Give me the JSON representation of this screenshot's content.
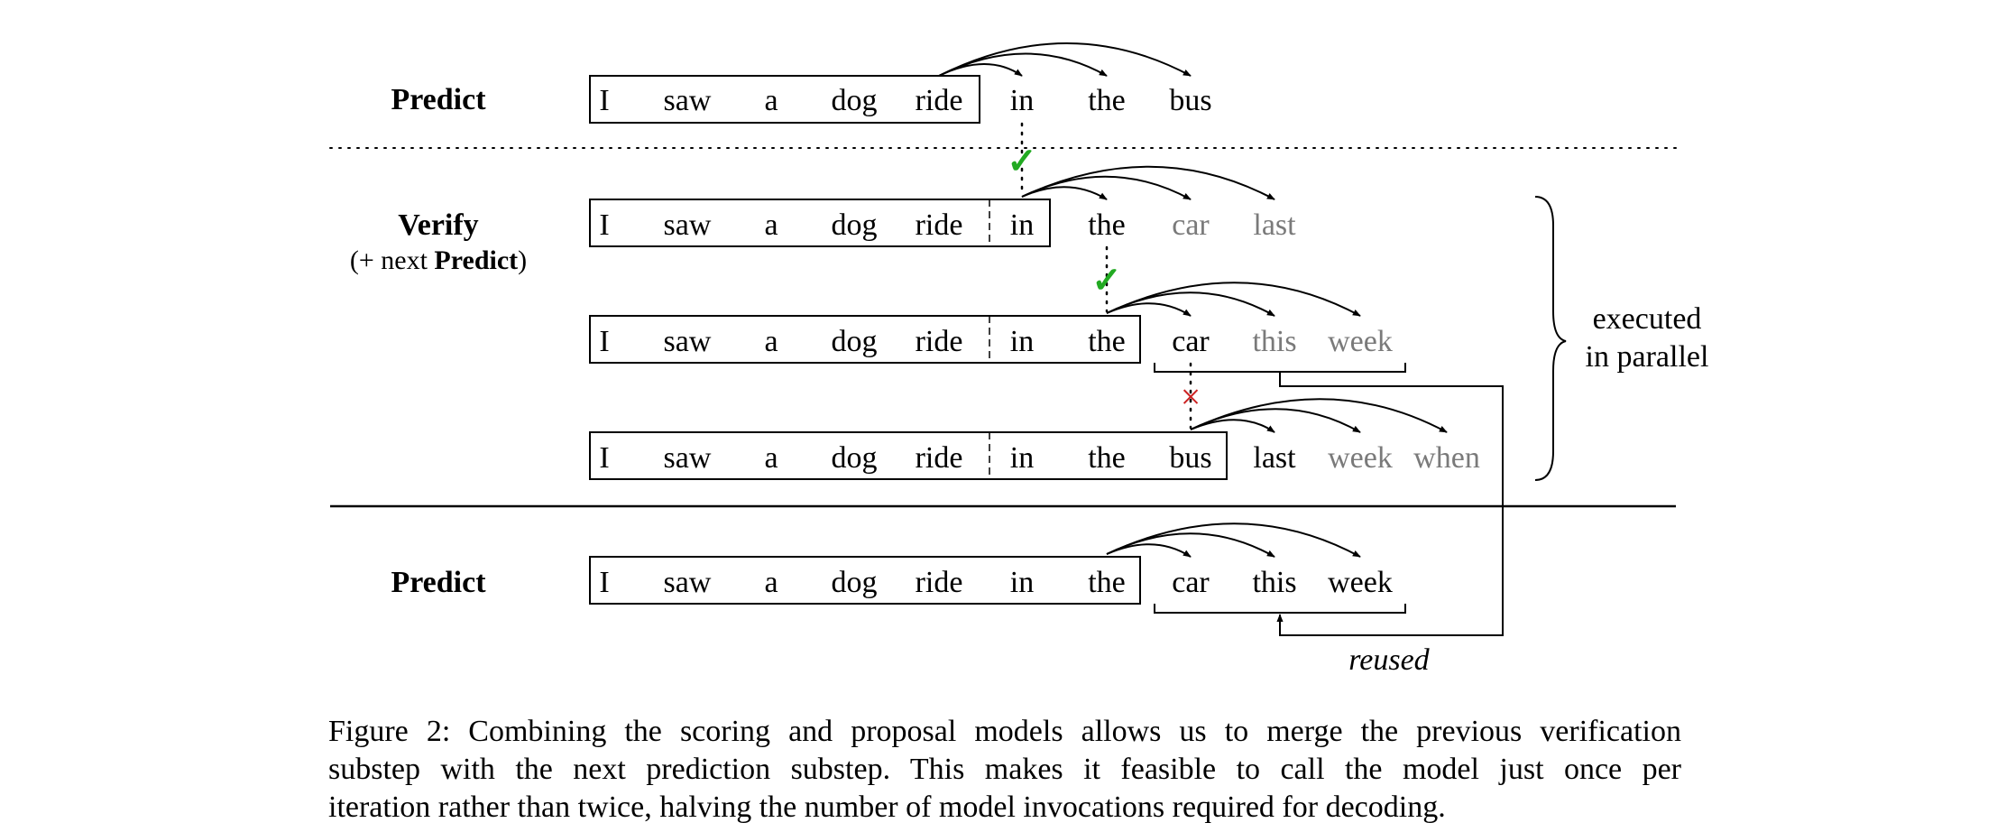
{
  "colors": {
    "black": "#000000",
    "gray": "#7a7a7a",
    "check": "#22aa22",
    "cross": "#cc2222"
  },
  "labels": {
    "predict": "Predict",
    "verify": "Verify",
    "verify_sub_prefix": "(+ next ",
    "verify_sub_bold": "Predict",
    "verify_sub_suffix": ")",
    "executed_line1": "executed",
    "executed_line2": "in parallel",
    "reused": "reused"
  },
  "rows": [
    {
      "id": "predict-top",
      "tokens": [
        {
          "text": "I",
          "style": "black"
        },
        {
          "text": "saw",
          "style": "black"
        },
        {
          "text": "a",
          "style": "black"
        },
        {
          "text": "dog",
          "style": "black"
        },
        {
          "text": "ride",
          "style": "black"
        },
        {
          "text": "in",
          "style": "black"
        },
        {
          "text": "the",
          "style": "black"
        },
        {
          "text": "bus",
          "style": "black"
        }
      ]
    },
    {
      "id": "verify-1",
      "tokens": [
        {
          "text": "I",
          "style": "black"
        },
        {
          "text": "saw",
          "style": "black"
        },
        {
          "text": "a",
          "style": "black"
        },
        {
          "text": "dog",
          "style": "black"
        },
        {
          "text": "ride",
          "style": "black"
        },
        {
          "text": "in",
          "style": "black"
        },
        {
          "text": "the",
          "style": "black"
        },
        {
          "text": "car",
          "style": "gray"
        },
        {
          "text": "last",
          "style": "gray"
        }
      ]
    },
    {
      "id": "verify-2",
      "tokens": [
        {
          "text": "I",
          "style": "black"
        },
        {
          "text": "saw",
          "style": "black"
        },
        {
          "text": "a",
          "style": "black"
        },
        {
          "text": "dog",
          "style": "black"
        },
        {
          "text": "ride",
          "style": "black"
        },
        {
          "text": "in",
          "style": "black"
        },
        {
          "text": "the",
          "style": "black"
        },
        {
          "text": "car",
          "style": "black"
        },
        {
          "text": "this",
          "style": "gray"
        },
        {
          "text": "week",
          "style": "gray"
        }
      ]
    },
    {
      "id": "verify-3",
      "tokens": [
        {
          "text": "I",
          "style": "black"
        },
        {
          "text": "saw",
          "style": "black"
        },
        {
          "text": "a",
          "style": "black"
        },
        {
          "text": "dog",
          "style": "black"
        },
        {
          "text": "ride",
          "style": "black"
        },
        {
          "text": "in",
          "style": "black"
        },
        {
          "text": "the",
          "style": "black"
        },
        {
          "text": "bus",
          "style": "black"
        },
        {
          "text": "last",
          "style": "black"
        },
        {
          "text": "week",
          "style": "gray"
        },
        {
          "text": "when",
          "style": "gray"
        }
      ]
    },
    {
      "id": "predict-bottom",
      "tokens": [
        {
          "text": "I",
          "style": "black"
        },
        {
          "text": "saw",
          "style": "black"
        },
        {
          "text": "a",
          "style": "black"
        },
        {
          "text": "dog",
          "style": "black"
        },
        {
          "text": "ride",
          "style": "black"
        },
        {
          "text": "in",
          "style": "black"
        },
        {
          "text": "the",
          "style": "black"
        },
        {
          "text": "car",
          "style": "black"
        },
        {
          "text": "this",
          "style": "black"
        },
        {
          "text": "week",
          "style": "black"
        }
      ]
    }
  ],
  "symbols": {
    "check": "✓",
    "cross": "×"
  },
  "caption": {
    "line1": "Figure 2: Combining the scoring and proposal models allows us to merge the previous verification",
    "line2": "substep with the next prediction substep.  This makes it feasible to call the model just once per",
    "line3": "iteration rather than twice, halving the number of model invocations required for decoding."
  }
}
